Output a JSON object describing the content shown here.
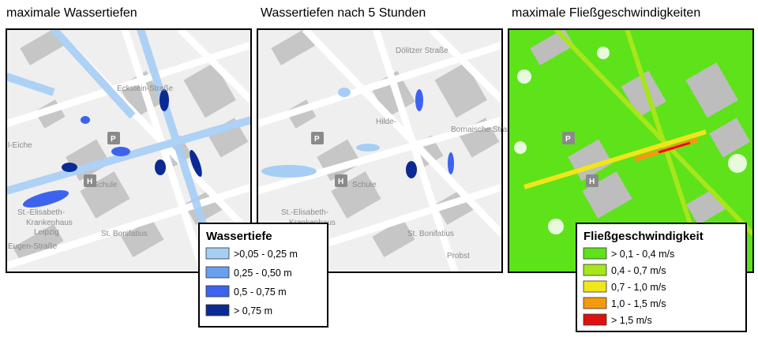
{
  "panels": [
    {
      "title": "maximale Wassertiefen",
      "labels": [
        "l-Eiche",
        "Schule",
        "St.-Elisabeth-",
        "Krankenhaus",
        "Leipzig",
        "St. Bonifatius",
        "Eugen-Straße",
        "Eckstein-Straße",
        "P",
        "H"
      ]
    },
    {
      "title": "Wassertiefen nach 5 Stunden",
      "labels": [
        "Schule",
        "St.-Elisabeth-",
        "Krankenhaus",
        "St. Bonifatius",
        "Probst",
        "Hilde-",
        "Dölitzer Straße",
        "Bornaische Straße",
        "P",
        "H"
      ]
    },
    {
      "title": "maximale Fließgeschwindigkeiten",
      "labels": [
        "P",
        "H"
      ]
    }
  ],
  "legends": [
    {
      "title": "Wassertiefe",
      "items": [
        {
          "label": ">0,05 - 0,25 m",
          "color": "#a6cef5"
        },
        {
          "label": "0,25 - 0,50 m",
          "color": "#6a9ff0"
        },
        {
          "label": "0,5 - 0,75 m",
          "color": "#3d63ee"
        },
        {
          "label": "> 0,75 m",
          "color": "#0b2a94"
        }
      ]
    },
    {
      "title": "Fließgeschwindigkeit",
      "items": [
        {
          "label": "> 0,1 - 0,4 m/s",
          "color": "#5ee21a"
        },
        {
          "label": "0,4 - 0,7 m/s",
          "color": "#a6e61a"
        },
        {
          "label": "0,7 - 1,0 m/s",
          "color": "#f0e61a"
        },
        {
          "label": "1,0  - 1,5 m/s",
          "color": "#f59a10"
        },
        {
          "label": "> 1,5 m/s",
          "color": "#e01010"
        }
      ]
    }
  ]
}
